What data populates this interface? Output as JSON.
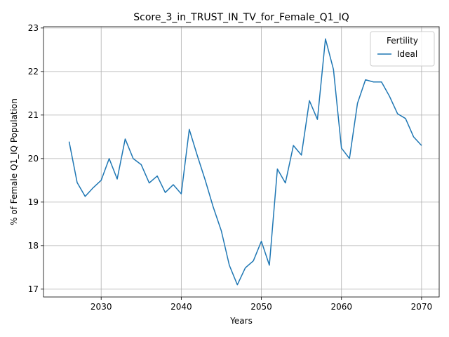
{
  "chart_data": {
    "type": "line",
    "title": "Score_3_in_TRUST_IN_TV_for_Female_Q1_IQ",
    "xlabel": "Years",
    "ylabel": "% of Female Q1_IQ Population",
    "xlim": [
      2022.8,
      2072.2
    ],
    "ylim": [
      16.82,
      23.03
    ],
    "xticks": [
      2030,
      2040,
      2050,
      2060,
      2070
    ],
    "yticks": [
      17,
      18,
      19,
      20,
      21,
      22,
      23
    ],
    "grid": true,
    "legend": {
      "title": "Fertility",
      "position": "top-right"
    },
    "series": [
      {
        "name": "Ideal",
        "color": "#1f77b4",
        "x": [
          2026,
          2027,
          2028,
          2029,
          2030,
          2031,
          2032,
          2033,
          2034,
          2035,
          2036,
          2037,
          2038,
          2039,
          2040,
          2041,
          2042,
          2043,
          2044,
          2045,
          2046,
          2047,
          2048,
          2049,
          2050,
          2051,
          2052,
          2053,
          2054,
          2055,
          2056,
          2057,
          2058,
          2059,
          2060,
          2061,
          2062,
          2063,
          2064,
          2065,
          2066,
          2067,
          2068,
          2069,
          2070
        ],
        "y": [
          20.39,
          19.45,
          19.13,
          19.33,
          19.5,
          20.0,
          19.53,
          20.45,
          20.0,
          19.86,
          19.44,
          19.6,
          19.22,
          19.4,
          19.19,
          20.67,
          20.07,
          19.5,
          18.88,
          18.34,
          17.55,
          17.1,
          17.49,
          17.65,
          18.1,
          17.55,
          19.76,
          19.44,
          20.3,
          20.08,
          21.33,
          20.9,
          22.75,
          22.05,
          20.24,
          20.0,
          21.27,
          21.81,
          21.76,
          21.76,
          21.43,
          21.03,
          20.92,
          20.5,
          20.3
        ]
      }
    ]
  }
}
